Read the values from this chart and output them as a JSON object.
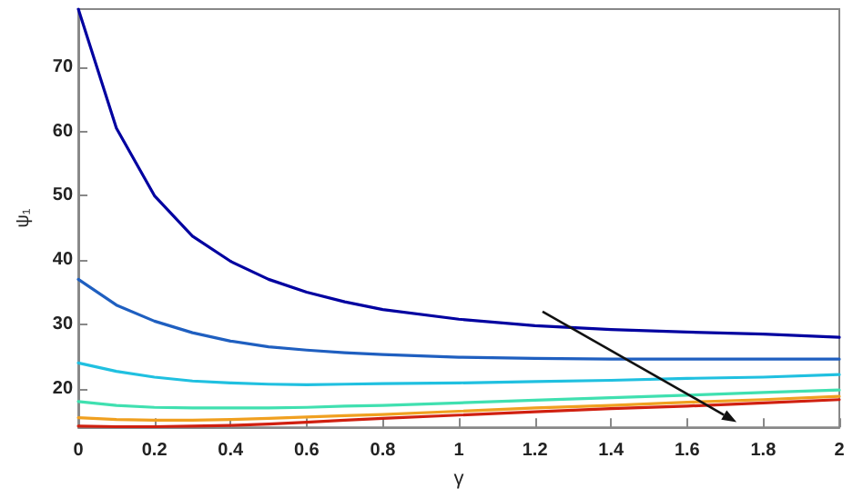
{
  "chart_data": {
    "type": "line",
    "xlabel": "γ",
    "ylabel": "ψ₁",
    "x": [
      0,
      0.1,
      0.2,
      0.3,
      0.4,
      0.5,
      0.6,
      0.7,
      0.8,
      1,
      1.2,
      1.4,
      1.6,
      1.8,
      2
    ],
    "series": [
      {
        "color": "#0000a0",
        "values": [
          79,
          60.5,
          50,
          43.7,
          39.8,
          37,
          35,
          33.5,
          32.3,
          30.8,
          29.8,
          29.2,
          28.8,
          28.5,
          28
        ]
      },
      {
        "color": "#1f5fc0",
        "values": [
          37,
          33,
          30.5,
          28.7,
          27.4,
          26.5,
          26,
          25.6,
          25.3,
          24.9,
          24.7,
          24.6,
          24.6,
          24.6,
          24.6
        ]
      },
      {
        "color": "#20c0e0",
        "values": [
          24,
          22.7,
          21.8,
          21.2,
          20.9,
          20.7,
          20.6,
          20.7,
          20.8,
          20.9,
          21.1,
          21.3,
          21.6,
          21.8,
          22.2
        ]
      },
      {
        "color": "#40e0b0",
        "values": [
          18,
          17.4,
          17.1,
          17,
          17,
          17,
          17.1,
          17.3,
          17.4,
          17.8,
          18.2,
          18.6,
          19,
          19.4,
          19.8
        ]
      },
      {
        "color": "#f0a020",
        "values": [
          15.5,
          15.2,
          15.1,
          15.1,
          15.2,
          15.4,
          15.6,
          15.8,
          16,
          16.5,
          17,
          17.4,
          17.9,
          18.3,
          18.8
        ]
      },
      {
        "color": "#d02010",
        "values": [
          14.2,
          14.1,
          14.1,
          14.2,
          14.3,
          14.5,
          14.8,
          15.1,
          15.4,
          15.9,
          16.4,
          16.9,
          17.3,
          17.8,
          18.3
        ]
      }
    ],
    "xlim": [
      0,
      2
    ],
    "xticks": [
      0,
      0.2,
      0.4,
      0.6,
      0.8,
      1,
      1.2,
      1.4,
      1.6,
      1.8,
      2
    ],
    "ylim": [
      14,
      79
    ],
    "yticks": [
      20,
      30,
      40,
      50,
      60,
      70
    ],
    "marker": "none",
    "line_style": "solid"
  }
}
